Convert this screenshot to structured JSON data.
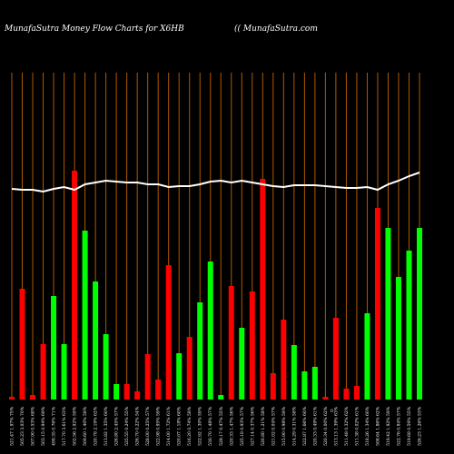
{
  "chart_data": {
    "type": "bar",
    "title": "MunafaSutra  Money Flow  Charts for X6HB",
    "subtitle": "(( MunafaSutra.com",
    "annotation": "0",
    "categories": [
      "521.47 1.97% 75%",
      "505.23 3.03% 70%",
      "507.90 0.53% 68%",
      "503.15 0.94% 69%",
      "499.35 0.76% 71%",
      "517.70 3.61% 63%",
      "502.56 2.92% 59%",
      "509.60 1.40% 58%",
      "520.78 2.19% 62%",
      "513.82 1.35% 60%",
      "526.80 2.45% 57%",
      "525.55 0.24% 55%",
      "526.70 0.22% 54%",
      "528.00 0.25% 57%",
      "522.98 0.95% 59%",
      "514.00 1.72% 61%",
      "520.07 1.18% 60%",
      "516.20 0.74% 58%",
      "522.92 1.30% 59%",
      "530.70 1.48% 57%",
      "528.17 0.47% 55%",
      "520.33 1.47% 56%",
      "525.18 0.93% 57%",
      "527.14 0.37% 56%",
      "520.80 1.21% 58%",
      "521.02 0.04% 57%",
      "515.90 0.98% 59%",
      "514.29 0.31% 58%",
      "522.87 1.66% 60%",
      "520.33 0.49% 61%",
      "520.34 0.00% 62%",
      "513.13 1.39% 63%",
      "511.48 0.32% 62%",
      "511.38 0.02% 61%",
      "518.26 1.34% 60%",
      "508.64 1.86% 62%",
      "518.42 1.92% 59%",
      "522.76 0.84% 57%",
      "519.68 0.59% 55%",
      "526.23 1.26% 53%"
    ],
    "values": [
      3,
      122,
      5,
      61,
      114,
      61,
      252,
      186,
      130,
      72,
      17,
      17,
      9,
      50,
      22,
      148,
      51,
      69,
      107,
      152,
      5,
      125,
      79,
      119,
      243,
      29,
      88,
      60,
      31,
      36,
      3,
      90,
      12,
      15,
      95,
      211,
      189,
      135,
      164,
      189
    ],
    "colors": [
      "#ff0000",
      "#ff0000",
      "#ff0000",
      "#ff0000",
      "#00ff00",
      "#00ff00",
      "#ff0000",
      "#00ff00",
      "#00ff00",
      "#00ff00",
      "#00ff00",
      "#ff0000",
      "#ff0000",
      "#ff0000",
      "#ff0000",
      "#ff0000",
      "#00ff00",
      "#ff0000",
      "#00ff00",
      "#00ff00",
      "#00ff00",
      "#ff0000",
      "#00ff00",
      "#ff0000",
      "#ff0000",
      "#ff0000",
      "#ff0000",
      "#00ff00",
      "#00ff00",
      "#00ff00",
      "#ff0000",
      "#ff0000",
      "#ff0000",
      "#ff0000",
      "#00ff00",
      "#ff0000",
      "#00ff00",
      "#00ff00",
      "#00ff00",
      "#00ff00"
    ],
    "line": {
      "color": "#ffffff",
      "values": [
        232,
        231,
        231,
        229,
        232,
        234,
        231,
        237,
        239,
        241,
        240,
        239,
        239,
        237,
        237,
        234,
        235,
        235,
        237,
        240,
        241,
        239,
        241,
        239,
        237,
        235,
        234,
        236,
        236,
        236,
        235,
        234,
        233,
        233,
        234,
        231,
        237,
        241,
        246,
        250
      ]
    },
    "grid_color": "#b35900",
    "ylim": [
      0,
      360
    ]
  }
}
